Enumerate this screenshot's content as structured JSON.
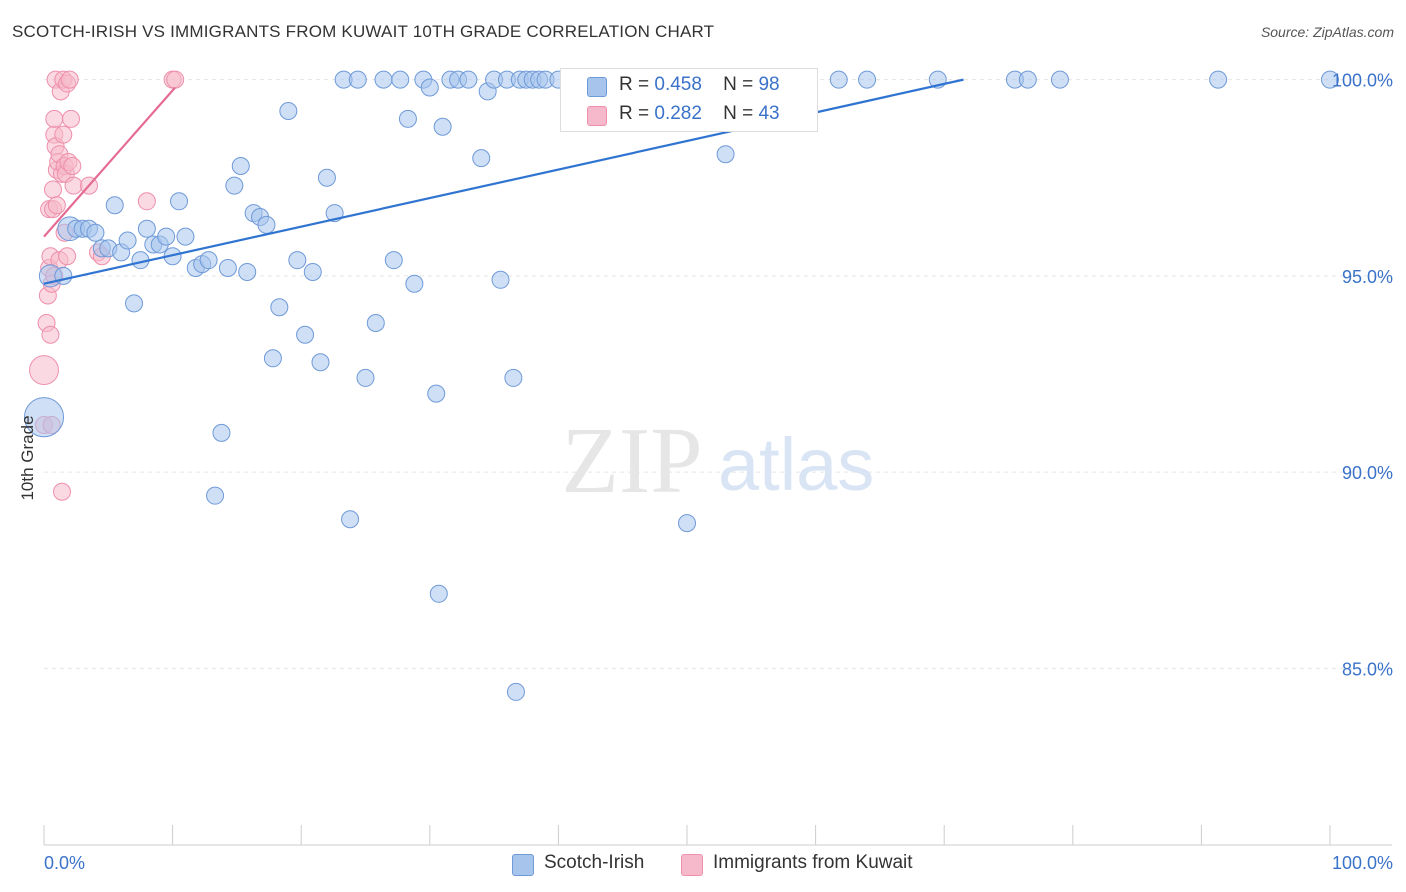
{
  "title": "SCOTCH-IRISH VS IMMIGRANTS FROM KUWAIT 10TH GRADE CORRELATION CHART",
  "source": "Source: ZipAtlas.com",
  "watermark": {
    "zip": "ZIP",
    "atlas": "atlas"
  },
  "legend": {
    "series1": {
      "r_label": "R =",
      "r_value": "0.458",
      "n_label": "N =",
      "n_value": "98"
    },
    "series2": {
      "r_label": "R =",
      "r_value": "0.282",
      "n_label": "N =",
      "n_value": "43"
    }
  },
  "bottom_legend": {
    "series1": "Scotch-Irish",
    "series2": "Immigrants from Kuwait"
  },
  "chart_data": {
    "type": "scatter",
    "title": "SCOTCH-IRISH VS IMMIGRANTS FROM KUWAIT 10TH GRADE CORRELATION CHART",
    "xlabel": "",
    "ylabel": "10th Grade",
    "xlim": [
      0,
      100
    ],
    "ylim": [
      80.5,
      100.5
    ],
    "x_tick_labels": [
      "0.0%",
      "100.0%"
    ],
    "y_ticks": [
      85,
      90,
      95,
      100
    ],
    "y_tick_labels": [
      "85.0%",
      "90.0%",
      "95.0%",
      "100.0%"
    ],
    "grid": true,
    "colors": {
      "series1": "#a7c5ec",
      "series1_stroke": "#6f9ad8",
      "series1_line": "#2f74d0",
      "series2": "#f6b9cb",
      "series2_stroke": "#ee8fac",
      "series2_line": "#e56b93",
      "axis_label": "#3a72c9"
    },
    "series": [
      {
        "name": "Scotch-Irish",
        "trend": [
          [
            0,
            94.8
          ],
          [
            71.5,
            100.0
          ]
        ],
        "points": [
          [
            0,
            91.4,
            2.3
          ],
          [
            0.5,
            95.0,
            1.3
          ],
          [
            1.5,
            95.0,
            1
          ],
          [
            2,
            96.2,
            1.4
          ],
          [
            2.5,
            96.2,
            1
          ],
          [
            3,
            96.2,
            1
          ],
          [
            3.5,
            96.2,
            1
          ],
          [
            4,
            96.1,
            1
          ],
          [
            4.5,
            95.7,
            1
          ],
          [
            5,
            95.7,
            1
          ],
          [
            5.5,
            96.8,
            1
          ],
          [
            6,
            95.6,
            1
          ],
          [
            6.5,
            95.9,
            1
          ],
          [
            7,
            94.3,
            1
          ],
          [
            7.5,
            95.4,
            1
          ],
          [
            8,
            96.2,
            1
          ],
          [
            8.5,
            95.8,
            1
          ],
          [
            9,
            95.8,
            1
          ],
          [
            9.5,
            96.0,
            1
          ],
          [
            10,
            95.5,
            1
          ],
          [
            10.5,
            96.9,
            1
          ],
          [
            11,
            96.0,
            1
          ],
          [
            11.8,
            95.2,
            1
          ],
          [
            12.3,
            95.3,
            1
          ],
          [
            12.8,
            95.4,
            1
          ],
          [
            13.3,
            89.4,
            1
          ],
          [
            13.8,
            91.0,
            1
          ],
          [
            14.3,
            95.2,
            1
          ],
          [
            14.8,
            97.3,
            1
          ],
          [
            15.3,
            97.8,
            1
          ],
          [
            15.8,
            95.1,
            1
          ],
          [
            16.3,
            96.6,
            1
          ],
          [
            16.8,
            96.5,
            1
          ],
          [
            17.3,
            96.3,
            1
          ],
          [
            17.8,
            92.9,
            1
          ],
          [
            18.3,
            94.2,
            1
          ],
          [
            19.0,
            99.2,
            1
          ],
          [
            19.7,
            95.4,
            1
          ],
          [
            20.3,
            93.5,
            1
          ],
          [
            20.9,
            95.1,
            1
          ],
          [
            21.5,
            92.8,
            1
          ],
          [
            22.0,
            97.5,
            1
          ],
          [
            22.6,
            96.6,
            1
          ],
          [
            23.3,
            100.0,
            1
          ],
          [
            23.8,
            88.8,
            1
          ],
          [
            24.4,
            100.0,
            1
          ],
          [
            25.0,
            92.4,
            1
          ],
          [
            25.8,
            93.8,
            1
          ],
          [
            26.4,
            100.0,
            1
          ],
          [
            27.2,
            95.4,
            1
          ],
          [
            27.7,
            100.0,
            1
          ],
          [
            28.3,
            99.0,
            1
          ],
          [
            28.8,
            94.8,
            1
          ],
          [
            29.5,
            100.0,
            1
          ],
          [
            30.0,
            99.8,
            1
          ],
          [
            30.5,
            92.0,
            1
          ],
          [
            31.0,
            98.8,
            1
          ],
          [
            30.7,
            86.9,
            1
          ],
          [
            31.6,
            100.0,
            1
          ],
          [
            32.2,
            100.0,
            1
          ],
          [
            33.0,
            100.0,
            1
          ],
          [
            34.0,
            98.0,
            1
          ],
          [
            34.5,
            99.7,
            1
          ],
          [
            35.0,
            100.0,
            1
          ],
          [
            35.5,
            94.9,
            1
          ],
          [
            36.0,
            100.0,
            1
          ],
          [
            36.5,
            92.4,
            1
          ],
          [
            36.7,
            84.4,
            1
          ],
          [
            37.0,
            100.0,
            1
          ],
          [
            37.5,
            100.0,
            1
          ],
          [
            38.0,
            100.0,
            1
          ],
          [
            38.5,
            100.0,
            1
          ],
          [
            39.0,
            100.0,
            1
          ],
          [
            40.0,
            100.0,
            1
          ],
          [
            41.0,
            100.0,
            1
          ],
          [
            42.0,
            100.0,
            1
          ],
          [
            43.0,
            100.0,
            1
          ],
          [
            44.0,
            100.0,
            1
          ],
          [
            45.0,
            100.0,
            1
          ],
          [
            46.0,
            100.0,
            1
          ],
          [
            47.0,
            100.0,
            1
          ],
          [
            48.0,
            100.0,
            1
          ],
          [
            50.0,
            88.7,
            1
          ],
          [
            51.0,
            100.0,
            1
          ],
          [
            52.0,
            100.0,
            1
          ],
          [
            53.0,
            98.1,
            1
          ],
          [
            54.0,
            100.0,
            1
          ],
          [
            55.0,
            100.0,
            1
          ],
          [
            56.0,
            100.0,
            1
          ],
          [
            58.0,
            100.0,
            1
          ],
          [
            61.8,
            100.0,
            1
          ],
          [
            64.0,
            100.0,
            1
          ],
          [
            69.5,
            100.0,
            1
          ],
          [
            75.5,
            100.0,
            1
          ],
          [
            76.5,
            100.0,
            1
          ],
          [
            79.0,
            100.0,
            1
          ],
          [
            91.3,
            100.0,
            1
          ],
          [
            100.0,
            100.0,
            1
          ]
        ]
      },
      {
        "name": "Immigrants from Kuwait",
        "trend": [
          [
            0,
            96.0
          ],
          [
            10.2,
            99.8
          ]
        ],
        "points": [
          [
            0,
            92.6,
            1.7
          ],
          [
            0,
            91.2,
            1
          ],
          [
            0.2,
            93.8,
            1
          ],
          [
            0.3,
            94.5,
            1
          ],
          [
            0.4,
            95.2,
            1
          ],
          [
            0.4,
            96.7,
            1
          ],
          [
            0.5,
            93.5,
            1
          ],
          [
            0.5,
            95.5,
            1
          ],
          [
            0.6,
            94.8,
            1
          ],
          [
            0.6,
            91.2,
            1
          ],
          [
            0.7,
            96.7,
            1
          ],
          [
            0.7,
            97.2,
            1
          ],
          [
            0.8,
            95.0,
            1
          ],
          [
            0.8,
            98.6,
            1
          ],
          [
            0.8,
            99.0,
            1
          ],
          [
            0.9,
            100.0,
            1
          ],
          [
            0.9,
            98.3,
            1
          ],
          [
            1.0,
            96.8,
            1
          ],
          [
            1.0,
            97.7,
            1
          ],
          [
            1.1,
            97.9,
            1
          ],
          [
            1.2,
            95.4,
            1
          ],
          [
            1.2,
            98.1,
            1
          ],
          [
            1.3,
            99.7,
            1
          ],
          [
            1.4,
            89.5,
            1
          ],
          [
            1.4,
            97.6,
            1
          ],
          [
            1.5,
            98.6,
            1
          ],
          [
            1.5,
            100.0,
            1
          ],
          [
            1.6,
            97.8,
            1
          ],
          [
            1.6,
            96.1,
            1
          ],
          [
            1.7,
            97.6,
            1
          ],
          [
            1.8,
            99.9,
            1
          ],
          [
            1.8,
            95.5,
            1
          ],
          [
            1.9,
            97.9,
            1
          ],
          [
            2.0,
            100.0,
            1
          ],
          [
            2.1,
            99.0,
            1
          ],
          [
            2.2,
            97.8,
            1
          ],
          [
            2.3,
            97.3,
            1
          ],
          [
            3.5,
            97.3,
            1
          ],
          [
            4.2,
            95.6,
            1
          ],
          [
            4.5,
            95.5,
            1
          ],
          [
            8.0,
            96.9,
            1
          ],
          [
            10.0,
            100.0,
            1
          ],
          [
            10.2,
            100.0,
            1
          ]
        ]
      }
    ]
  }
}
